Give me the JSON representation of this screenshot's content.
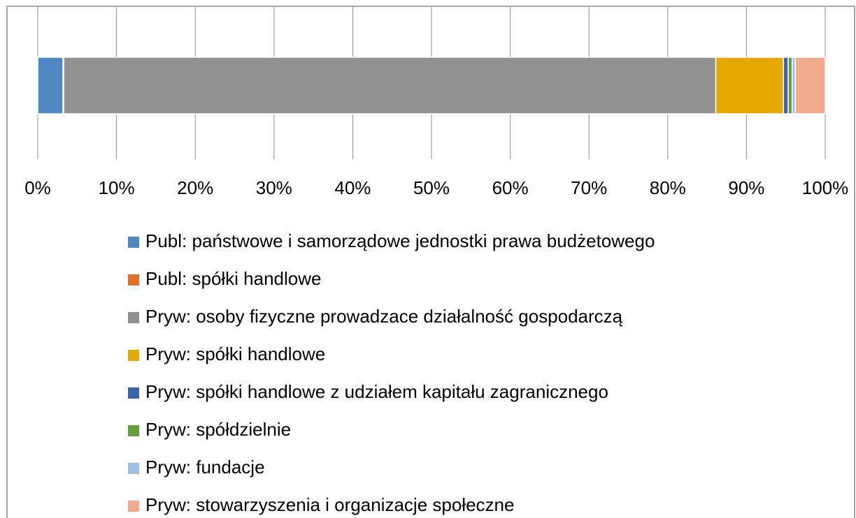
{
  "chart_data": {
    "type": "stacked-bar-horizontal",
    "categories": [
      null
    ],
    "series": [
      {
        "name": "Publ: państwowe i samorządowe jednostki prawa budżetowego",
        "color": "#4f87c2",
        "values": [
          3.2
        ]
      },
      {
        "name": "Publ: spółki handlowe",
        "color": "#e2702a",
        "values": [
          0.1
        ]
      },
      {
        "name": "Pryw: osoby fizyczne prowadzace działalność gospodarczą",
        "color": "#919191",
        "values": [
          82.8
        ]
      },
      {
        "name": "Pryw: spółki handlowe",
        "color": "#e5a900",
        "values": [
          8.6
        ]
      },
      {
        "name": "Pryw: spółki handlowe z udziałem kapitału zagranicznego",
        "color": "#3b62ae",
        "values": [
          0.6
        ]
      },
      {
        "name": "Pryw: spółdzielnie",
        "color": "#62a03b",
        "values": [
          0.5
        ]
      },
      {
        "name": "Pryw: fundacje",
        "color": "#9ec0e4",
        "values": [
          0.4
        ]
      },
      {
        "name": "Pryw: stowarzyszenia i organizacje społeczne",
        "color": "#f2a98c",
        "values": [
          3.8
        ]
      }
    ],
    "xlim": [
      0,
      100
    ],
    "xticks": [
      {
        "value": 0,
        "label": "0%"
      },
      {
        "value": 10,
        "label": "10%"
      },
      {
        "value": 20,
        "label": "20%"
      },
      {
        "value": 30,
        "label": "30%"
      },
      {
        "value": 40,
        "label": "40%"
      },
      {
        "value": 50,
        "label": "50%"
      },
      {
        "value": 60,
        "label": "60%"
      },
      {
        "value": 70,
        "label": "70%"
      },
      {
        "value": 80,
        "label": "80%"
      },
      {
        "value": 90,
        "label": "90%"
      },
      {
        "value": 100,
        "label": "100%"
      }
    ],
    "grid": true,
    "legend": "bottom"
  }
}
